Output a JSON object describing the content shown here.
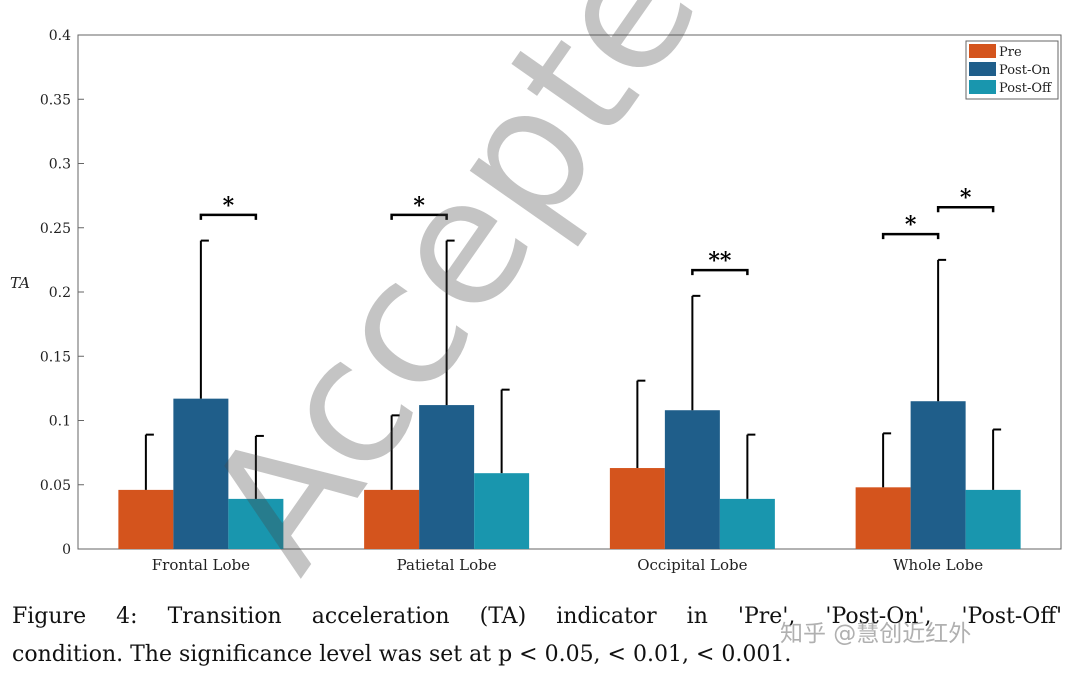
{
  "chart_data": {
    "type": "bar",
    "ylabel": "TA",
    "xlabel": "",
    "ylim": [
      0,
      0.4
    ],
    "yticks": [
      0,
      0.05,
      0.1,
      0.15,
      0.2,
      0.25,
      0.3,
      0.35,
      0.4
    ],
    "ytick_labels": [
      "0",
      "0.05",
      "0.1",
      "0.15",
      "0.2",
      "0.25",
      "0.3",
      "0.35",
      "0.4"
    ],
    "categories": [
      "Frontal Lobe",
      "Patietal Lobe",
      "Occipital Lobe",
      "Whole Lobe"
    ],
    "series": [
      {
        "name": "Pre",
        "color": "#d4541d",
        "values": [
          0.046,
          0.046,
          0.063,
          0.048
        ],
        "errors": [
          0.043,
          0.058,
          0.068,
          0.042
        ]
      },
      {
        "name": "Post-On",
        "color": "#1f5e8a",
        "values": [
          0.117,
          0.112,
          0.108,
          0.115
        ],
        "errors": [
          0.123,
          0.128,
          0.089,
          0.11
        ]
      },
      {
        "name": "Post-Off",
        "color": "#1996ae",
        "values": [
          0.039,
          0.059,
          0.039,
          0.046
        ],
        "errors": [
          0.049,
          0.065,
          0.05,
          0.047
        ]
      }
    ],
    "significance": [
      {
        "category": 0,
        "from_series": 1,
        "to_series": 2,
        "label": "*",
        "y": 0.26
      },
      {
        "category": 1,
        "from_series": 0,
        "to_series": 1,
        "label": "*",
        "y": 0.26
      },
      {
        "category": 2,
        "from_series": 1,
        "to_series": 2,
        "label": "**",
        "y": 0.217
      },
      {
        "category": 3,
        "from_series": 0,
        "to_series": 1,
        "label": "*",
        "y": 0.245
      },
      {
        "category": 3,
        "from_series": 1,
        "to_series": 2,
        "label": "*",
        "y": 0.266
      }
    ],
    "legend_position": "top-right",
    "grid": false
  },
  "caption": {
    "line1": "Figure 4:  Transition acceleration (TA) indicator in 'Pre', 'Post-On', 'Post-Off'",
    "line2": "condition. The significance level was set at p < 0.05, < 0.01, < 0.001."
  },
  "watermark": "知乎 @慧创近红外",
  "overlay_text": "Accepted Manuscript"
}
